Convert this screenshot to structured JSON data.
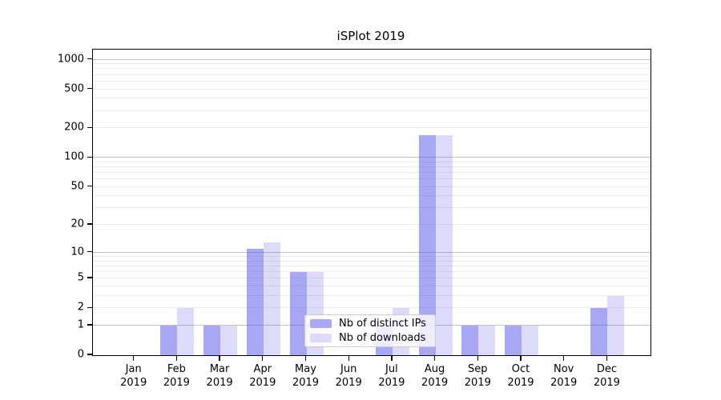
{
  "title": "iSPlot 2019",
  "chart_data": {
    "type": "bar",
    "title": "iSPlot 2019",
    "categories": [
      "Jan",
      "Feb",
      "Mar",
      "Apr",
      "May",
      "Jun",
      "Jul",
      "Aug",
      "Sep",
      "Oct",
      "Nov",
      "Dec"
    ],
    "category_year": "2019",
    "series": [
      {
        "name": "Nb of distinct IPs",
        "color": "#5050E8",
        "alpha": 0.5,
        "values": [
          0,
          1,
          1,
          11,
          6,
          0,
          1,
          170,
          1,
          1,
          0,
          2
        ]
      },
      {
        "name": "Nb of downloads",
        "color": "#5050E8",
        "alpha": 0.2,
        "values": [
          0,
          2,
          1,
          13,
          6,
          0,
          2,
          170,
          1,
          1,
          0,
          3
        ]
      }
    ],
    "xlabel": "",
    "ylabel": "",
    "y_ticks": [
      0,
      1,
      2,
      5,
      10,
      20,
      50,
      100,
      200,
      500,
      1000
    ],
    "y_major_gridlines": [
      1,
      10,
      100,
      1000
    ],
    "y_scale": "log10(value+1)",
    "ylim": [
      0,
      1265
    ],
    "grid": true,
    "legend_position": "lower-center-inside"
  },
  "colors": {
    "major_grid": "#c3c3c3",
    "minor_grid": "#ececec",
    "spine": "#000000",
    "text": "#000000",
    "background": "#ffffff"
  }
}
